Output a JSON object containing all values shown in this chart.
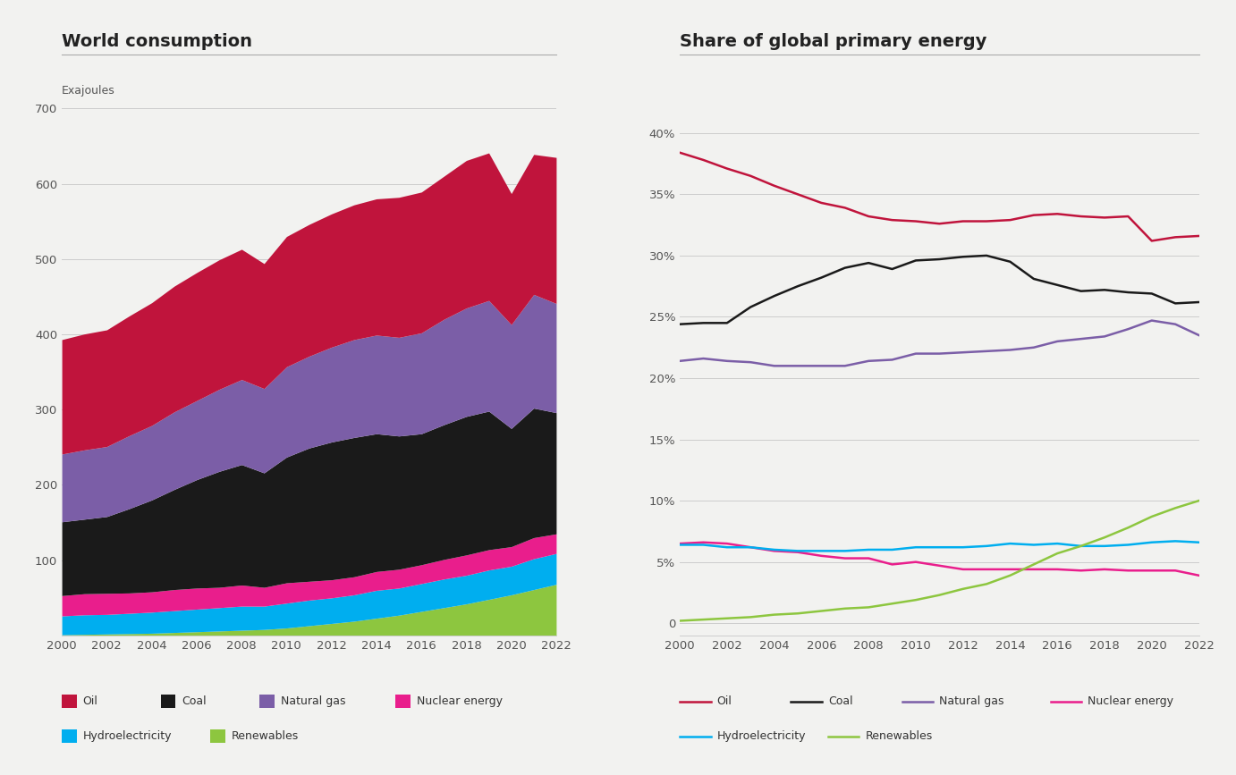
{
  "years": [
    2000,
    2001,
    2002,
    2003,
    2004,
    2005,
    2006,
    2007,
    2008,
    2009,
    2010,
    2011,
    2012,
    2013,
    2014,
    2015,
    2016,
    2017,
    2018,
    2019,
    2020,
    2021,
    2022
  ],
  "consumption": {
    "Renewables": [
      1,
      1.5,
      2,
      2.5,
      3,
      4,
      5,
      6,
      7,
      8,
      10,
      13,
      16,
      19,
      23,
      27,
      32,
      37,
      42,
      48,
      54,
      61,
      68
    ],
    "Hydroelectricity": [
      25,
      26,
      26,
      27,
      28,
      29,
      30,
      31,
      32,
      31,
      33,
      34,
      34,
      35,
      37,
      36,
      37,
      38,
      38,
      39,
      38,
      41,
      41
    ],
    "Nuclear energy": [
      27,
      28,
      28,
      27,
      27,
      28,
      28,
      27,
      28,
      25,
      27,
      25,
      24,
      24,
      25,
      25,
      25,
      26,
      27,
      27,
      26,
      28,
      26
    ],
    "Coal": [
      98,
      99,
      102,
      112,
      122,
      133,
      144,
      154,
      160,
      152,
      167,
      177,
      183,
      185,
      183,
      177,
      174,
      179,
      184,
      184,
      157,
      172,
      161
    ],
    "Natural gas": [
      90,
      92,
      93,
      97,
      99,
      103,
      105,
      109,
      113,
      112,
      120,
      122,
      126,
      130,
      131,
      131,
      134,
      140,
      144,
      147,
      138,
      151,
      145
    ],
    "Oil": [
      152,
      154,
      155,
      159,
      163,
      167,
      170,
      172,
      173,
      166,
      173,
      175,
      177,
      179,
      181,
      186,
      187,
      190,
      196,
      196,
      174,
      186,
      194
    ]
  },
  "shares": {
    "Oil": [
      38.4,
      37.8,
      37.1,
      36.5,
      35.7,
      35.0,
      34.3,
      33.9,
      33.2,
      32.9,
      32.8,
      32.6,
      32.8,
      32.8,
      32.9,
      33.3,
      33.4,
      33.2,
      33.1,
      33.2,
      31.2,
      31.5,
      31.6
    ],
    "Coal": [
      24.4,
      24.5,
      24.5,
      25.8,
      26.7,
      27.5,
      28.2,
      29.0,
      29.4,
      28.9,
      29.6,
      29.7,
      29.9,
      30.0,
      29.5,
      28.1,
      27.6,
      27.1,
      27.2,
      27.0,
      26.9,
      26.1,
      26.2
    ],
    "Natural gas": [
      21.4,
      21.6,
      21.4,
      21.3,
      21.0,
      21.0,
      21.0,
      21.0,
      21.4,
      21.5,
      22.0,
      22.0,
      22.1,
      22.2,
      22.3,
      22.5,
      23.0,
      23.2,
      23.4,
      24.0,
      24.7,
      24.4,
      23.5
    ],
    "Nuclear energy": [
      6.5,
      6.6,
      6.5,
      6.2,
      5.9,
      5.8,
      5.5,
      5.3,
      5.3,
      4.8,
      5.0,
      4.7,
      4.4,
      4.4,
      4.4,
      4.4,
      4.4,
      4.3,
      4.4,
      4.3,
      4.3,
      4.3,
      3.9
    ],
    "Hydroelectricity": [
      6.4,
      6.4,
      6.2,
      6.2,
      6.0,
      5.9,
      5.9,
      5.9,
      6.0,
      6.0,
      6.2,
      6.2,
      6.2,
      6.3,
      6.5,
      6.4,
      6.5,
      6.3,
      6.3,
      6.4,
      6.6,
      6.7,
      6.6
    ],
    "Renewables": [
      0.2,
      0.3,
      0.4,
      0.5,
      0.7,
      0.8,
      1.0,
      1.2,
      1.3,
      1.6,
      1.9,
      2.3,
      2.8,
      3.2,
      3.9,
      4.8,
      5.7,
      6.3,
      7.0,
      7.8,
      8.7,
      9.4,
      10.0
    ]
  },
  "colors": {
    "Oil": "#c0143c",
    "Coal": "#1a1a1a",
    "Natural gas": "#7b5ea7",
    "Nuclear energy": "#e91e8c",
    "Hydroelectricity": "#00aeef",
    "Renewables": "#8dc63f"
  },
  "stack_order": [
    "Renewables",
    "Hydroelectricity",
    "Nuclear energy",
    "Coal",
    "Natural gas",
    "Oil"
  ],
  "line_order": [
    "Oil",
    "Coal",
    "Natural gas",
    "Nuclear energy",
    "Hydroelectricity",
    "Renewables"
  ],
  "left_title": "World consumption",
  "right_title": "Share of global primary energy",
  "ylabel_left": "Exajoules",
  "ylim_left": [
    0,
    700
  ],
  "ylim_right": [
    -1,
    42
  ],
  "yticks_left": [
    0,
    100,
    200,
    300,
    400,
    500,
    600,
    700
  ],
  "yticks_right": [
    0,
    5,
    10,
    15,
    20,
    25,
    30,
    35,
    40
  ],
  "xticks": [
    2000,
    2002,
    2004,
    2006,
    2008,
    2010,
    2012,
    2014,
    2016,
    2018,
    2020,
    2022
  ],
  "background_color": "#f2f2f0"
}
